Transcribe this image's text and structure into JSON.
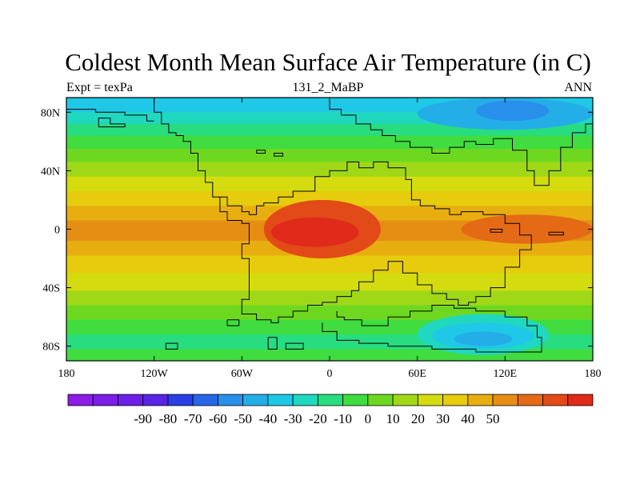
{
  "header": {
    "title": "Coldest Month Mean Surface Air Temperature (in C)",
    "left": "Expt = texPa",
    "center": "131_2_MaBP",
    "right": "ANN"
  },
  "chart_data": {
    "type": "heatmap",
    "title": "Coldest Month Mean Surface Air Temperature (in C)",
    "variable": "Coldest Month Mean Surface Air Temperature",
    "units": "C",
    "projection": "cylindrical equidistant",
    "xlim": [
      -180,
      180
    ],
    "ylim": [
      -90,
      90
    ],
    "x_ticks": [
      {
        "value": -180,
        "label": "180"
      },
      {
        "value": -120,
        "label": "120W"
      },
      {
        "value": -60,
        "label": "60W"
      },
      {
        "value": 0,
        "label": "0"
      },
      {
        "value": 60,
        "label": "60E"
      },
      {
        "value": 120,
        "label": "120E"
      },
      {
        "value": 180,
        "label": "180"
      }
    ],
    "y_ticks": [
      {
        "value": 80,
        "label": "80N"
      },
      {
        "value": 40,
        "label": "40N"
      },
      {
        "value": 0,
        "label": "0"
      },
      {
        "value": -40,
        "label": "40S"
      },
      {
        "value": -80,
        "label": "80S"
      }
    ],
    "colorbar": {
      "labels": [
        "-90",
        "-80",
        "-70",
        "-60",
        "-50",
        "-40",
        "-30",
        "-20",
        "-10",
        "0",
        "10",
        "20",
        "30",
        "40",
        "50"
      ],
      "colors": [
        "#8c1ce8",
        "#7c1ee8",
        "#6c20e6",
        "#5a24e4",
        "#2a3ee6",
        "#2666e8",
        "#2890ea",
        "#24aee8",
        "#1ec8e6",
        "#20d8c0",
        "#28dc80",
        "#40dc40",
        "#6ed820",
        "#a0d818",
        "#d4dc10",
        "#e6cc0c",
        "#e8ae10",
        "#e68e14",
        "#e46a16",
        "#e24a18",
        "#e02a1a"
      ]
    },
    "fill_bands": [
      {
        "lat_from": 90,
        "lat_to": 80,
        "color": "#1ec8e6"
      },
      {
        "lat_from": 80,
        "lat_to": 72,
        "color": "#20d8c0"
      },
      {
        "lat_from": 72,
        "lat_to": 64,
        "color": "#28dc80"
      },
      {
        "lat_from": 64,
        "lat_to": 55,
        "color": "#40dc40"
      },
      {
        "lat_from": 55,
        "lat_to": 46,
        "color": "#6ed820"
      },
      {
        "lat_from": 46,
        "lat_to": 36,
        "color": "#a0d818"
      },
      {
        "lat_from": 36,
        "lat_to": 26,
        "color": "#d4dc10"
      },
      {
        "lat_from": 26,
        "lat_to": 16,
        "color": "#e6cc0c"
      },
      {
        "lat_from": 16,
        "lat_to": 6,
        "color": "#e8ae10"
      },
      {
        "lat_from": 6,
        "lat_to": -8,
        "color": "#e68e14"
      },
      {
        "lat_from": -8,
        "lat_to": -18,
        "color": "#e8ae10"
      },
      {
        "lat_from": -18,
        "lat_to": -30,
        "color": "#e6cc0c"
      },
      {
        "lat_from": -30,
        "lat_to": -42,
        "color": "#d4dc10"
      },
      {
        "lat_from": -42,
        "lat_to": -52,
        "color": "#a0d818"
      },
      {
        "lat_from": -52,
        "lat_to": -62,
        "color": "#6ed820"
      },
      {
        "lat_from": -62,
        "lat_to": -72,
        "color": "#40dc40"
      },
      {
        "lat_from": -72,
        "lat_to": -82,
        "color": "#28dc80"
      },
      {
        "lat_from": -82,
        "lat_to": -90,
        "color": "#40dc40"
      }
    ],
    "features": [
      {
        "kind": "hot-equatorial-continent",
        "lon_min": -45,
        "lon_max": 35,
        "lat_min": -20,
        "lat_max": 20,
        "color": "#e24a18"
      },
      {
        "kind": "hot-equatorial-continent-core",
        "lon_min": -40,
        "lon_max": 20,
        "lat_min": -12,
        "lat_max": 8,
        "color": "#e02a1a"
      },
      {
        "kind": "hot-east-pacific",
        "lon_min": 90,
        "lon_max": 180,
        "lat_min": -10,
        "lat_max": 10,
        "color": "#e46a16"
      },
      {
        "kind": "cold-north-continent",
        "lon_min": 60,
        "lon_max": 180,
        "lat_min": 68,
        "lat_max": 90,
        "color": "#24aee8"
      },
      {
        "kind": "cold-north-continent-core",
        "lon_min": 100,
        "lon_max": 150,
        "lat_min": 74,
        "lat_max": 88,
        "color": "#2890ea"
      },
      {
        "kind": "cold-south-continent",
        "lon_min": 60,
        "lon_max": 150,
        "lat_min": -86,
        "lat_max": -58,
        "color": "#20d8c0"
      },
      {
        "kind": "cold-south-continent-mid",
        "lon_min": 70,
        "lon_max": 140,
        "lat_min": -82,
        "lat_max": -64,
        "color": "#1ec8e6"
      },
      {
        "kind": "cold-south-continent-core",
        "lon_min": 85,
        "lon_max": 125,
        "lat_min": -80,
        "lat_max": -70,
        "color": "#24aee8"
      }
    ],
    "coastlines": [
      [
        [
          -120,
          90
        ],
        [
          -120,
          80
        ],
        [
          -115,
          80
        ],
        [
          -115,
          72
        ],
        [
          -110,
          72
        ],
        [
          -110,
          66
        ],
        [
          -105,
          66
        ],
        [
          -105,
          64
        ],
        [
          -100,
          64
        ],
        [
          -100,
          60
        ],
        [
          -95,
          60
        ],
        [
          -95,
          52
        ],
        [
          -90,
          52
        ],
        [
          -90,
          40
        ],
        [
          -85,
          40
        ],
        [
          -85,
          32
        ],
        [
          -80,
          32
        ],
        [
          -80,
          22
        ],
        [
          -75,
          22
        ],
        [
          -75,
          12
        ],
        [
          -70,
          12
        ],
        [
          -70,
          6
        ],
        [
          -60,
          6
        ],
        [
          -60,
          4
        ],
        [
          -55,
          4
        ],
        [
          -55,
          -10
        ],
        [
          -60,
          -10
        ],
        [
          -60,
          -20
        ],
        [
          -55,
          -20
        ],
        [
          -55,
          -48
        ],
        [
          -60,
          -48
        ],
        [
          -60,
          -58
        ],
        [
          -50,
          -58
        ],
        [
          -50,
          -62
        ],
        [
          -40,
          -62
        ],
        [
          -40,
          -64
        ],
        [
          -35,
          -64
        ],
        [
          -35,
          -60
        ],
        [
          -25,
          -60
        ],
        [
          -25,
          -56
        ],
        [
          -15,
          -56
        ],
        [
          -15,
          -52
        ],
        [
          -5,
          -52
        ],
        [
          -5,
          -50
        ],
        [
          5,
          -50
        ],
        [
          5,
          -46
        ],
        [
          15,
          -46
        ],
        [
          15,
          -42
        ],
        [
          20,
          -42
        ],
        [
          20,
          -36
        ],
        [
          30,
          -36
        ],
        [
          30,
          -28
        ],
        [
          40,
          -28
        ],
        [
          40,
          -22
        ],
        [
          50,
          -22
        ],
        [
          50,
          -30
        ],
        [
          60,
          -30
        ],
        [
          60,
          -38
        ],
        [
          70,
          -38
        ],
        [
          70,
          -44
        ],
        [
          80,
          -44
        ],
        [
          80,
          -48
        ],
        [
          88,
          -48
        ],
        [
          88,
          -52
        ],
        [
          95,
          -52
        ],
        [
          95,
          -50
        ],
        [
          100,
          -50
        ],
        [
          100,
          -46
        ],
        [
          110,
          -46
        ],
        [
          110,
          -40
        ],
        [
          120,
          -40
        ],
        [
          120,
          -26
        ],
        [
          130,
          -26
        ],
        [
          130,
          -14
        ],
        [
          138,
          -14
        ],
        [
          138,
          -4
        ],
        [
          130,
          -4
        ],
        [
          130,
          4
        ],
        [
          120,
          4
        ],
        [
          120,
          10
        ],
        [
          105,
          10
        ],
        [
          105,
          12
        ],
        [
          90,
          12
        ],
        [
          90,
          10
        ],
        [
          82,
          10
        ],
        [
          82,
          14
        ],
        [
          72,
          14
        ],
        [
          72,
          16
        ],
        [
          62,
          16
        ],
        [
          62,
          20
        ],
        [
          56,
          20
        ],
        [
          56,
          34
        ],
        [
          52,
          34
        ],
        [
          52,
          42
        ],
        [
          40,
          42
        ],
        [
          40,
          46
        ],
        [
          30,
          46
        ],
        [
          30,
          42
        ],
        [
          20,
          42
        ],
        [
          20,
          46
        ],
        [
          12,
          46
        ],
        [
          12,
          40
        ],
        [
          0,
          40
        ],
        [
          0,
          36
        ],
        [
          -10,
          36
        ],
        [
          -10,
          26
        ],
        [
          -25,
          26
        ],
        [
          -25,
          22
        ],
        [
          -35,
          22
        ],
        [
          -35,
          18
        ],
        [
          -45,
          18
        ],
        [
          -45,
          16
        ],
        [
          -50,
          16
        ],
        [
          -50,
          10
        ],
        [
          -55,
          10
        ],
        [
          -55,
          12
        ],
        [
          -60,
          12
        ],
        [
          -60,
          16
        ],
        [
          -70,
          16
        ],
        [
          -70,
          22
        ],
        [
          -75,
          22
        ]
      ],
      [
        [
          0,
          90
        ],
        [
          0,
          82
        ],
        [
          8,
          82
        ],
        [
          8,
          78
        ],
        [
          18,
          78
        ],
        [
          18,
          72
        ],
        [
          28,
          72
        ],
        [
          28,
          68
        ],
        [
          36,
          68
        ],
        [
          36,
          64
        ],
        [
          45,
          64
        ],
        [
          45,
          60
        ],
        [
          55,
          60
        ],
        [
          55,
          56
        ],
        [
          70,
          56
        ],
        [
          70,
          52
        ],
        [
          82,
          52
        ],
        [
          82,
          56
        ],
        [
          92,
          56
        ],
        [
          92,
          60
        ],
        [
          100,
          60
        ],
        [
          100,
          58
        ],
        [
          112,
          58
        ],
        [
          112,
          62
        ],
        [
          125,
          62
        ],
        [
          125,
          54
        ],
        [
          135,
          54
        ],
        [
          135,
          40
        ],
        [
          140,
          40
        ],
        [
          140,
          30
        ],
        [
          150,
          30
        ],
        [
          150,
          40
        ],
        [
          158,
          40
        ],
        [
          158,
          56
        ],
        [
          166,
          56
        ],
        [
          166,
          66
        ],
        [
          175,
          66
        ],
        [
          175,
          72
        ],
        [
          180,
          72
        ]
      ],
      [
        [
          -180,
          82
        ],
        [
          -160,
          82
        ],
        [
          -160,
          80
        ],
        [
          -140,
          80
        ],
        [
          -140,
          78
        ],
        [
          -125,
          78
        ],
        [
          -125,
          74
        ],
        [
          -120,
          74
        ]
      ],
      [
        [
          5,
          -56
        ],
        [
          5,
          -60
        ],
        [
          10,
          -60
        ],
        [
          10,
          -62
        ],
        [
          22,
          -62
        ],
        [
          22,
          -66
        ],
        [
          40,
          -66
        ],
        [
          40,
          -60
        ],
        [
          55,
          -60
        ],
        [
          55,
          -56
        ],
        [
          70,
          -56
        ],
        [
          70,
          -52
        ],
        [
          85,
          -52
        ],
        [
          85,
          -54
        ],
        [
          100,
          -54
        ],
        [
          100,
          -56
        ],
        [
          120,
          -56
        ],
        [
          120,
          -60
        ],
        [
          135,
          -60
        ],
        [
          135,
          -66
        ],
        [
          142,
          -66
        ],
        [
          142,
          -74
        ],
        [
          145,
          -74
        ],
        [
          145,
          -84
        ],
        [
          100,
          -84
        ],
        [
          100,
          -82
        ],
        [
          70,
          -82
        ],
        [
          70,
          -80
        ],
        [
          40,
          -80
        ],
        [
          40,
          -78
        ],
        [
          20,
          -78
        ],
        [
          20,
          -76
        ],
        [
          5,
          -76
        ],
        [
          5,
          -70
        ],
        [
          -5,
          -70
        ],
        [
          -5,
          -64
        ]
      ],
      [
        [
          -70,
          -62
        ],
        [
          -70,
          -66
        ],
        [
          -62,
          -66
        ],
        [
          -62,
          -62
        ],
        [
          -70,
          -62
        ]
      ],
      [
        [
          -112,
          -78
        ],
        [
          -112,
          -82
        ],
        [
          -104,
          -82
        ],
        [
          -104,
          -78
        ],
        [
          -112,
          -78
        ]
      ],
      [
        [
          -42,
          -74
        ],
        [
          -42,
          -82
        ],
        [
          -36,
          -82
        ],
        [
          -36,
          -74
        ],
        [
          -42,
          -74
        ]
      ],
      [
        [
          -30,
          -78
        ],
        [
          -30,
          -82
        ],
        [
          -18,
          -82
        ],
        [
          -18,
          -78
        ],
        [
          -30,
          -78
        ]
      ],
      [
        [
          -158,
          70
        ],
        [
          -158,
          76
        ],
        [
          -150,
          76
        ],
        [
          -150,
          72
        ],
        [
          -140,
          72
        ],
        [
          -140,
          70
        ],
        [
          -158,
          70
        ]
      ],
      [
        [
          -50,
          52
        ],
        [
          -50,
          54
        ],
        [
          -44,
          54
        ],
        [
          -44,
          52
        ],
        [
          -50,
          52
        ]
      ],
      [
        [
          -38,
          50
        ],
        [
          -38,
          52
        ],
        [
          -32,
          52
        ],
        [
          -32,
          50
        ],
        [
          -38,
          50
        ]
      ],
      [
        [
          150,
          -4
        ],
        [
          150,
          -2
        ],
        [
          160,
          -2
        ],
        [
          160,
          -4
        ],
        [
          150,
          -4
        ]
      ],
      [
        [
          110,
          -2
        ],
        [
          110,
          0
        ],
        [
          118,
          0
        ],
        [
          118,
          -2
        ],
        [
          110,
          -2
        ]
      ]
    ]
  }
}
